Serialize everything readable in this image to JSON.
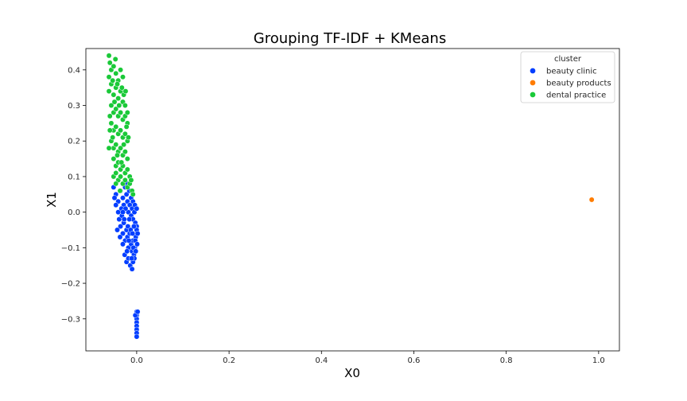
{
  "chart_data": {
    "type": "scatter",
    "title": "Grouping TF-IDF + KMeans",
    "xlabel": "X0",
    "ylabel": "X1",
    "xlim": [
      -0.11,
      1.045
    ],
    "ylim": [
      -0.39,
      0.46
    ],
    "xticks": [
      0.0,
      0.2,
      0.4,
      0.6,
      0.8,
      1.0
    ],
    "xtick_labels": [
      "0.0",
      "0.2",
      "0.4",
      "0.6",
      "0.8",
      "1.0"
    ],
    "yticks": [
      -0.3,
      -0.2,
      -0.1,
      0.0,
      0.1,
      0.2,
      0.3,
      0.4
    ],
    "ytick_labels": [
      "−0.3",
      "−0.2",
      "−0.1",
      "0.0",
      "0.1",
      "0.2",
      "0.3",
      "0.4"
    ],
    "grid": false,
    "legend": {
      "title": "cluster",
      "position": "top-right"
    },
    "series": [
      {
        "name": "beauty clinic",
        "color": "#023eff",
        "points": [
          [
            -0.045,
            0.05
          ],
          [
            -0.04,
            0.03
          ],
          [
            -0.035,
            0.06
          ],
          [
            -0.03,
            0.04
          ],
          [
            -0.028,
            0.02
          ],
          [
            -0.025,
            0.07
          ],
          [
            -0.022,
            0.05
          ],
          [
            -0.02,
            0.03
          ],
          [
            -0.018,
            0.0
          ],
          [
            -0.015,
            0.02
          ],
          [
            -0.012,
            -0.01
          ],
          [
            -0.01,
            0.01
          ],
          [
            -0.008,
            -0.02
          ],
          [
            -0.005,
            0.0
          ],
          [
            -0.003,
            -0.03
          ],
          [
            0.0,
            -0.04
          ],
          [
            -0.04,
            0.0
          ],
          [
            -0.038,
            -0.02
          ],
          [
            -0.035,
            -0.04
          ],
          [
            -0.032,
            -0.01
          ],
          [
            -0.03,
            -0.06
          ],
          [
            -0.028,
            -0.03
          ],
          [
            -0.025,
            -0.08
          ],
          [
            -0.022,
            -0.05
          ],
          [
            -0.02,
            -0.07
          ],
          [
            -0.018,
            -0.1
          ],
          [
            -0.015,
            -0.06
          ],
          [
            -0.012,
            -0.09
          ],
          [
            -0.01,
            -0.11
          ],
          [
            -0.008,
            -0.08
          ],
          [
            -0.006,
            -0.12
          ],
          [
            -0.004,
            -0.1
          ],
          [
            -0.002,
            -0.07
          ],
          [
            0.0,
            -0.05
          ],
          [
            0.002,
            -0.06
          ],
          [
            -0.03,
            -0.09
          ],
          [
            -0.026,
            -0.12
          ],
          [
            -0.022,
            -0.14
          ],
          [
            -0.018,
            -0.13
          ],
          [
            -0.014,
            -0.15
          ],
          [
            -0.01,
            -0.16
          ],
          [
            -0.008,
            -0.14
          ],
          [
            -0.005,
            -0.13
          ],
          [
            -0.02,
            0.08
          ],
          [
            -0.016,
            0.06
          ],
          [
            -0.012,
            0.04
          ],
          [
            -0.008,
            0.03
          ],
          [
            -0.004,
            0.02
          ],
          [
            0.0,
            0.01
          ],
          [
            -0.045,
            0.02
          ],
          [
            -0.042,
            -0.05
          ],
          [
            -0.036,
            -0.07
          ],
          [
            -0.033,
            0.01
          ],
          [
            -0.027,
            -0.02
          ],
          [
            -0.024,
            0.01
          ],
          [
            -0.019,
            -0.04
          ],
          [
            -0.016,
            -0.02
          ],
          [
            -0.013,
            -0.05
          ],
          [
            -0.009,
            -0.06
          ],
          [
            -0.006,
            -0.04
          ],
          [
            -0.003,
            -0.08
          ],
          [
            0.001,
            -0.09
          ],
          [
            -0.021,
            -0.11
          ],
          [
            -0.017,
            -0.08
          ],
          [
            -0.011,
            -0.13
          ],
          [
            -0.007,
            -0.1
          ],
          [
            -0.002,
            -0.11
          ],
          [
            -0.05,
            0.07
          ],
          [
            -0.048,
            0.04
          ],
          [
            -0.03,
            0.0
          ],
          [
            0.0,
            -0.28
          ],
          [
            0.0,
            -0.29
          ],
          [
            0.0,
            -0.3
          ],
          [
            0.0,
            -0.31
          ],
          [
            0.0,
            -0.32
          ],
          [
            0.0,
            -0.33
          ],
          [
            0.0,
            -0.34
          ],
          [
            0.0,
            -0.35
          ],
          [
            -0.003,
            -0.29
          ],
          [
            0.002,
            -0.28
          ]
        ]
      },
      {
        "name": "beauty products",
        "color": "#ff7c00",
        "points": [
          [
            0.985,
            0.035
          ]
        ]
      },
      {
        "name": "dental practice",
        "color": "#1ac938",
        "points": [
          [
            -0.06,
            0.44
          ],
          [
            -0.058,
            0.42
          ],
          [
            -0.055,
            0.4
          ],
          [
            -0.05,
            0.41
          ],
          [
            -0.045,
            0.39
          ],
          [
            -0.04,
            0.37
          ],
          [
            -0.035,
            0.4
          ],
          [
            -0.03,
            0.38
          ],
          [
            -0.06,
            0.34
          ],
          [
            -0.055,
            0.36
          ],
          [
            -0.05,
            0.33
          ],
          [
            -0.045,
            0.35
          ],
          [
            -0.04,
            0.32
          ],
          [
            -0.035,
            0.34
          ],
          [
            -0.03,
            0.31
          ],
          [
            -0.025,
            0.3
          ],
          [
            -0.055,
            0.3
          ],
          [
            -0.05,
            0.28
          ],
          [
            -0.045,
            0.29
          ],
          [
            -0.04,
            0.27
          ],
          [
            -0.035,
            0.28
          ],
          [
            -0.03,
            0.26
          ],
          [
            -0.025,
            0.27
          ],
          [
            -0.02,
            0.25
          ],
          [
            -0.055,
            0.25
          ],
          [
            -0.05,
            0.23
          ],
          [
            -0.045,
            0.24
          ],
          [
            -0.04,
            0.22
          ],
          [
            -0.035,
            0.23
          ],
          [
            -0.03,
            0.21
          ],
          [
            -0.025,
            0.22
          ],
          [
            -0.02,
            0.2
          ],
          [
            -0.055,
            0.2
          ],
          [
            -0.05,
            0.18
          ],
          [
            -0.045,
            0.19
          ],
          [
            -0.04,
            0.17
          ],
          [
            -0.035,
            0.18
          ],
          [
            -0.03,
            0.16
          ],
          [
            -0.025,
            0.17
          ],
          [
            -0.02,
            0.15
          ],
          [
            -0.05,
            0.15
          ],
          [
            -0.045,
            0.13
          ],
          [
            -0.04,
            0.14
          ],
          [
            -0.035,
            0.12
          ],
          [
            -0.03,
            0.13
          ],
          [
            -0.025,
            0.11
          ],
          [
            -0.02,
            0.12
          ],
          [
            -0.015,
            0.1
          ],
          [
            -0.05,
            0.1
          ],
          [
            -0.045,
            0.11
          ],
          [
            -0.04,
            0.09
          ],
          [
            -0.035,
            0.1
          ],
          [
            -0.03,
            0.08
          ],
          [
            -0.025,
            0.09
          ],
          [
            -0.02,
            0.07
          ],
          [
            -0.015,
            0.08
          ],
          [
            -0.01,
            0.06
          ],
          [
            -0.045,
            0.08
          ],
          [
            -0.06,
            0.38
          ],
          [
            -0.052,
            0.37
          ],
          [
            -0.042,
            0.36
          ],
          [
            -0.032,
            0.35
          ],
          [
            -0.028,
            0.33
          ],
          [
            -0.048,
            0.31
          ],
          [
            -0.038,
            0.3
          ],
          [
            -0.022,
            0.24
          ],
          [
            -0.018,
            0.21
          ],
          [
            -0.058,
            0.27
          ],
          [
            -0.052,
            0.21
          ],
          [
            -0.042,
            0.16
          ],
          [
            -0.012,
            0.09
          ],
          [
            -0.008,
            0.05
          ],
          [
            -0.028,
            0.19
          ],
          [
            -0.033,
            0.14
          ],
          [
            -0.06,
            0.18
          ],
          [
            -0.058,
            0.23
          ],
          [
            -0.036,
            0.06
          ],
          [
            -0.02,
            0.28
          ],
          [
            -0.024,
            0.34
          ],
          [
            -0.046,
            0.43
          ]
        ]
      }
    ]
  }
}
